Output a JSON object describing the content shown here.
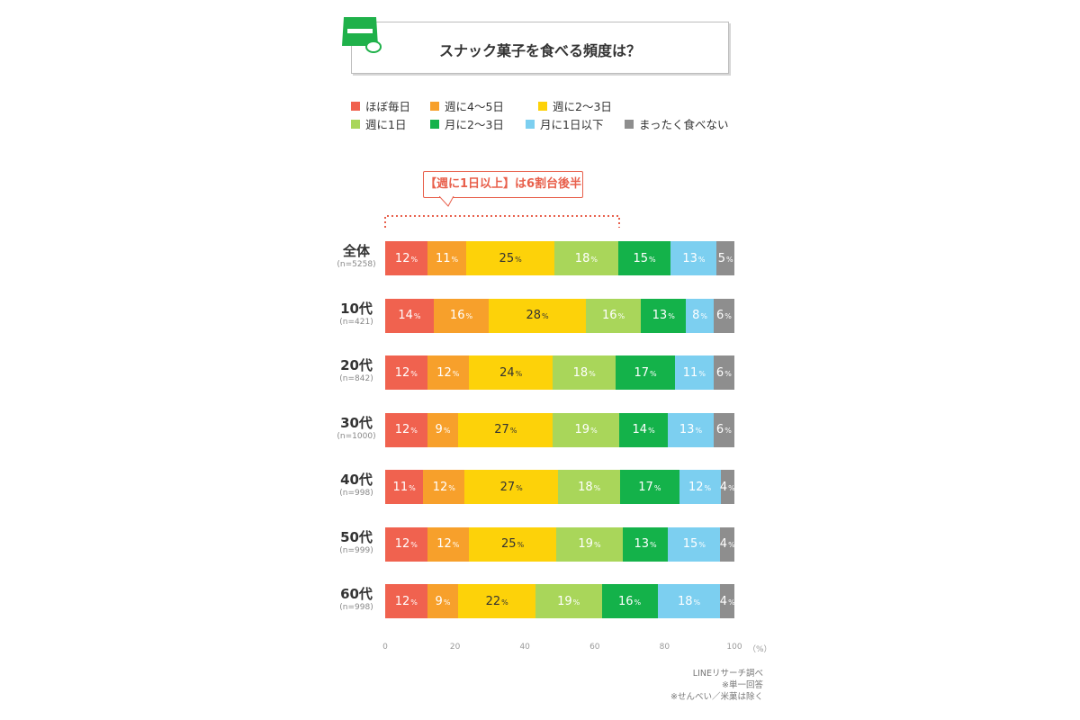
{
  "title": "スナック菓子を食べる頻度は？",
  "callout": "【週に1日以上】は6割台後半",
  "unit_label": "（%）",
  "notes": [
    "LINEリサーチ調べ",
    "※単一回答",
    "※せんべい／米菓は除く"
  ],
  "chart_data": {
    "type": "bar",
    "orientation": "horizontal",
    "stacked": true,
    "title": "スナック菓子を食べる頻度は？",
    "categories": [
      "全体",
      "10代",
      "20代",
      "30代",
      "40代",
      "50代",
      "60代"
    ],
    "sample_sizes": [
      "(n=5258)",
      "(n=421)",
      "(n=842)",
      "(n=1000)",
      "(n=998)",
      "(n=999)",
      "(n=998)"
    ],
    "xlim": [
      0,
      100
    ],
    "xticks": [
      0,
      20,
      40,
      60,
      80,
      100
    ],
    "value_suffix": "%",
    "legend_position": "top",
    "series": [
      {
        "name": "ほぼ毎日",
        "color": "#f0624f",
        "values": [
          12,
          14,
          12,
          12,
          11,
          12,
          12
        ]
      },
      {
        "name": "週に4〜5日",
        "color": "#f7a02b",
        "values": [
          11,
          16,
          12,
          9,
          12,
          12,
          9
        ]
      },
      {
        "name": "週に2〜3日",
        "color": "#fdd209",
        "values": [
          25,
          28,
          24,
          27,
          27,
          25,
          22
        ]
      },
      {
        "name": "週に1日",
        "color": "#a9d65a",
        "values": [
          18,
          16,
          18,
          19,
          18,
          19,
          19
        ]
      },
      {
        "name": "月に2〜3日",
        "color": "#14b24a",
        "values": [
          15,
          13,
          17,
          14,
          17,
          13,
          16
        ]
      },
      {
        "name": "月に1日以下",
        "color": "#7ccff0",
        "values": [
          13,
          8,
          11,
          13,
          12,
          15,
          18
        ]
      },
      {
        "name": "まったく食べない",
        "color": "#8e8e8e",
        "values": [
          5,
          6,
          6,
          6,
          4,
          4,
          4
        ]
      }
    ]
  }
}
